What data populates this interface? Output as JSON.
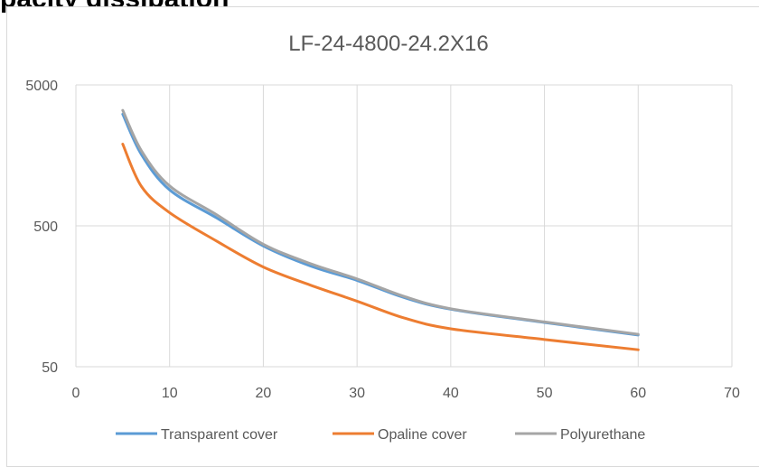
{
  "page_heading": "pacity dissipation",
  "chart_data": {
    "type": "line",
    "title": "LF-24-4800-24.2X16",
    "xlabel": "",
    "ylabel": "",
    "x_scale": "linear",
    "y_scale": "log",
    "xlim": [
      0,
      70
    ],
    "ylim": [
      50,
      5000
    ],
    "x_ticks": [
      0,
      10,
      20,
      30,
      40,
      50,
      60,
      70
    ],
    "y_ticks": [
      50,
      500,
      5000
    ],
    "grid": true,
    "legend_position": "bottom",
    "series": [
      {
        "name": "Transparent cover",
        "color": "#5b9bd5",
        "x": [
          5,
          7,
          10,
          15,
          20,
          25,
          30,
          35,
          40,
          50,
          60
        ],
        "y": [
          3100,
          1600,
          900,
          570,
          360,
          260,
          205,
          155,
          128,
          103,
          84
        ]
      },
      {
        "name": "Opaline cover",
        "color": "#ed7d31",
        "x": [
          5,
          7,
          10,
          15,
          20,
          25,
          30,
          35,
          40,
          50,
          60
        ],
        "y": [
          1900,
          950,
          620,
          390,
          255,
          190,
          146,
          111,
          93,
          78,
          66
        ]
      },
      {
        "name": "Polyurethane",
        "color": "#a5a5a5",
        "x": [
          5,
          7,
          10,
          15,
          20,
          25,
          30,
          35,
          40,
          50,
          60
        ],
        "y": [
          3300,
          1700,
          960,
          600,
          370,
          270,
          210,
          158,
          129,
          104,
          85
        ]
      }
    ]
  }
}
